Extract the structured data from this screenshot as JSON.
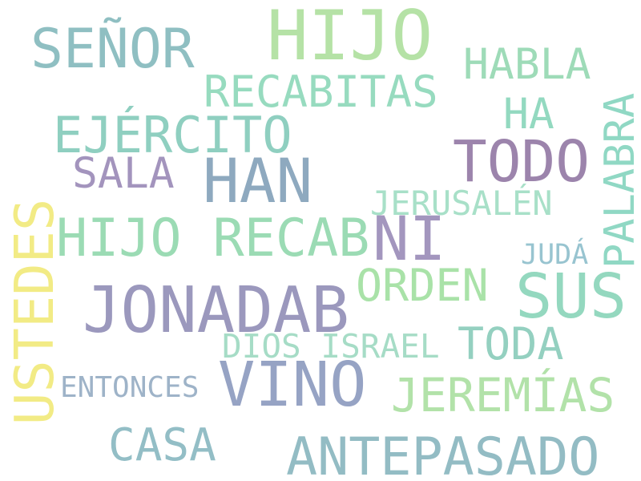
{
  "words": [
    {
      "text": "HIJO",
      "color": "#b5e2a6"
    },
    {
      "text": "SEÑOR",
      "color": "#8fbfc2"
    },
    {
      "text": "HABLA",
      "color": "#9edbb8"
    },
    {
      "text": "RECABITAS",
      "color": "#97dbbf"
    },
    {
      "text": "HA",
      "color": "#93d9c0"
    },
    {
      "text": "EJÉRCITO",
      "color": "#8fcfc0"
    },
    {
      "text": "PALABRA",
      "color": "#90d8c4"
    },
    {
      "text": "TODO",
      "color": "#9c84ac"
    },
    {
      "text": "SALA",
      "color": "#a394bd"
    },
    {
      "text": "HAN",
      "color": "#8ea9bf"
    },
    {
      "text": "USTEDES",
      "color": "#f2eb85"
    },
    {
      "text": "JERUSALÉN",
      "color": "#a8e0c8"
    },
    {
      "text": "HIJO RECAB",
      "color": "#9bdbb4"
    },
    {
      "text": "NI",
      "color": "#a396be"
    },
    {
      "text": "JUDÁ",
      "color": "#98c4d0"
    },
    {
      "text": "ORDEN",
      "color": "#a9e2a8"
    },
    {
      "text": "SUS",
      "color": "#94d8bf"
    },
    {
      "text": "JONADAB",
      "color": "#9b98bd"
    },
    {
      "text": "DIOS ISRAEL",
      "color": "#a6dcc6"
    },
    {
      "text": "TODA",
      "color": "#94d0c0"
    },
    {
      "text": "ENTONCES",
      "color": "#9eb3c8"
    },
    {
      "text": "VINO",
      "color": "#96a3c4"
    },
    {
      "text": "JEREMÍAS",
      "color": "#b2e2a9"
    },
    {
      "text": "CASA",
      "color": "#93bec6"
    },
    {
      "text": "ANTEPASADO",
      "color": "#93bcc4"
    }
  ]
}
